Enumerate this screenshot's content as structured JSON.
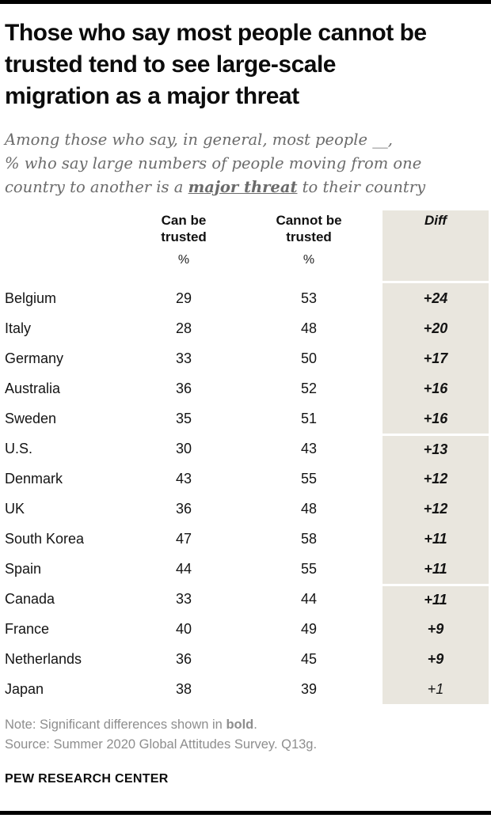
{
  "header": {
    "title_lines": [
      "Those who say most people cannot be",
      "trusted tend to see large-scale",
      "migration as a major threat"
    ],
    "subtitle": {
      "line1": "Among those who say, in general, most people __,",
      "line2": "% who say large numbers of people moving from one",
      "line3_before": "country to another is a ",
      "line3_emphasis": "major threat",
      "line3_after": " to their country"
    }
  },
  "table": {
    "header": {
      "can": [
        "Can be",
        "trusted"
      ],
      "cannot": [
        "Cannot be",
        "trusted"
      ],
      "diff": "Diff",
      "percent": "%"
    },
    "rows": [
      {
        "country": "Belgium",
        "can": "29",
        "cannot": "53",
        "diff": "+24",
        "significant": true,
        "group_start": false
      },
      {
        "country": "Italy",
        "can": "28",
        "cannot": "48",
        "diff": "+20",
        "significant": true,
        "group_start": false
      },
      {
        "country": "Germany",
        "can": "33",
        "cannot": "50",
        "diff": "+17",
        "significant": true,
        "group_start": false
      },
      {
        "country": "Australia",
        "can": "36",
        "cannot": "52",
        "diff": "+16",
        "significant": true,
        "group_start": false
      },
      {
        "country": "Sweden",
        "can": "35",
        "cannot": "51",
        "diff": "+16",
        "significant": true,
        "group_start": false
      },
      {
        "country": "U.S.",
        "can": "30",
        "cannot": "43",
        "diff": "+13",
        "significant": true,
        "group_start": true
      },
      {
        "country": "Denmark",
        "can": "43",
        "cannot": "55",
        "diff": "+12",
        "significant": true,
        "group_start": false
      },
      {
        "country": "UK",
        "can": "36",
        "cannot": "48",
        "diff": "+12",
        "significant": true,
        "group_start": false
      },
      {
        "country": "South Korea",
        "can": "47",
        "cannot": "58",
        "diff": "+11",
        "significant": true,
        "group_start": false
      },
      {
        "country": "Spain",
        "can": "44",
        "cannot": "55",
        "diff": "+11",
        "significant": true,
        "group_start": false
      },
      {
        "country": "Canada",
        "can": "33",
        "cannot": "44",
        "diff": "+11",
        "significant": true,
        "group_start": true
      },
      {
        "country": "France",
        "can": "40",
        "cannot": "49",
        "diff": "+9",
        "significant": true,
        "group_start": false
      },
      {
        "country": "Netherlands",
        "can": "36",
        "cannot": "45",
        "diff": "+9",
        "significant": true,
        "group_start": false
      },
      {
        "country": "Japan",
        "can": "38",
        "cannot": "39",
        "diff": "+1",
        "significant": false,
        "group_start": false
      }
    ]
  },
  "footer": {
    "note_prefix": "Note: Significant differences shown in ",
    "note_bold": "bold",
    "note_suffix": ".",
    "source": "Source: Summer 2020 Global Attitudes Survey. Q13g.",
    "brand": "PEW RESEARCH CENTER"
  },
  "colors": {
    "diff_column_beige": "#e9e6de",
    "rule_black": "#000000",
    "subtitle_gray": "#6b6b6b",
    "note_gray": "#8e8e8e"
  },
  "chart_data": {
    "type": "table",
    "title": "Those who say most people cannot be trusted tend to see large-scale migration as a major threat",
    "subtitle": "Among those who say, in general, most people __, % who say large numbers of people moving from one country to another is a major threat to their country",
    "columns": [
      "Can be trusted (%)",
      "Cannot be trusted (%)",
      "Diff"
    ],
    "categories": [
      "Belgium",
      "Italy",
      "Germany",
      "Australia",
      "Sweden",
      "U.S.",
      "Denmark",
      "UK",
      "South Korea",
      "Spain",
      "Canada",
      "France",
      "Netherlands",
      "Japan"
    ],
    "series": [
      {
        "name": "Can be trusted",
        "values": [
          29,
          28,
          33,
          36,
          35,
          30,
          43,
          36,
          47,
          44,
          33,
          40,
          36,
          38
        ]
      },
      {
        "name": "Cannot be trusted",
        "values": [
          53,
          48,
          50,
          52,
          51,
          43,
          55,
          48,
          58,
          55,
          44,
          49,
          45,
          39
        ]
      },
      {
        "name": "Diff",
        "values": [
          24,
          20,
          17,
          16,
          16,
          13,
          12,
          12,
          11,
          11,
          11,
          9,
          9,
          1
        ]
      }
    ],
    "significant_diff": [
      true,
      true,
      true,
      true,
      true,
      true,
      true,
      true,
      true,
      true,
      true,
      true,
      true,
      false
    ],
    "note": "Significant differences shown in bold.",
    "source": "Summer 2020 Global Attitudes Survey. Q13g.",
    "layout": {
      "diff_column_shaded": true,
      "row_groups": [
        5,
        5,
        4
      ]
    }
  }
}
